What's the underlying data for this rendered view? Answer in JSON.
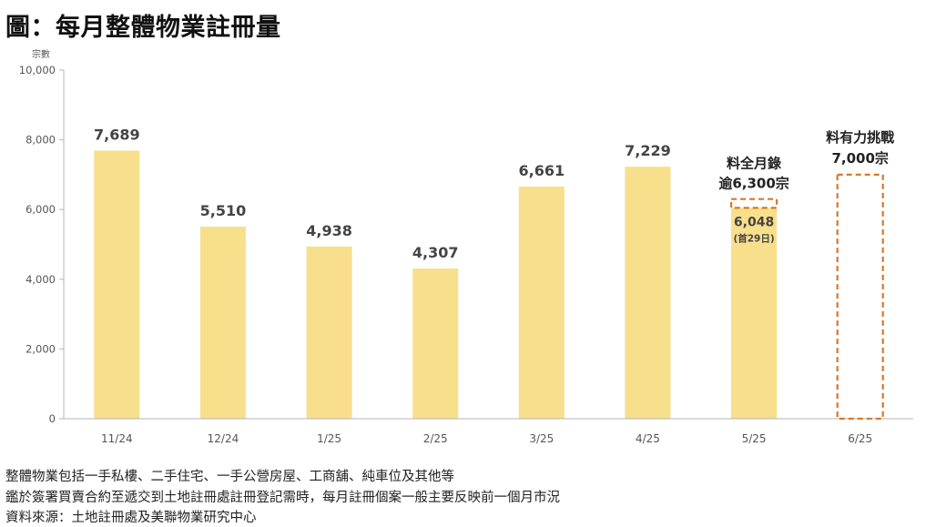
{
  "title": "圖：每月整體物業註冊量",
  "chart_data": {
    "type": "bar",
    "ylabel": "宗數",
    "ylim": [
      0,
      10000
    ],
    "yticks": [
      0,
      2000,
      4000,
      6000,
      8000,
      10000
    ],
    "ytick_labels": [
      "0",
      "2,000",
      "4,000",
      "6,000",
      "8,000",
      "10,000"
    ],
    "categories": [
      "11/24",
      "12/24",
      "1/25",
      "2/25",
      "3/25",
      "4/25",
      "5/25",
      "6/25"
    ],
    "values": [
      7689,
      5510,
      4938,
      4307,
      6661,
      7229,
      6048,
      null
    ],
    "data_labels": [
      "7,689",
      "5,510",
      "4,938",
      "4,307",
      "6,661",
      "7,229",
      "6,048",
      ""
    ],
    "bar_color": "#f8df8b",
    "projection_color": "#d9772b",
    "annotations": {
      "may_note": "(首29日)",
      "may_projection": {
        "value": 6300,
        "label_line1": "料全月錄",
        "label_line2": "逾6,300宗"
      },
      "june_projection": {
        "value": 7000,
        "label_line1": "料有力挑戰",
        "label_line2": "7,000宗"
      }
    }
  },
  "footnotes": [
    "整體物業包括一手私樓、二手住宅、一手公營房屋、工商舖、純車位及其他等",
    "鑑於簽署買賣合約至遞交到土地註冊處註冊登記需時，每月註冊個案一般主要反映前一個月市況",
    "資料來源：土地註冊處及美聯物業研究中心"
  ]
}
